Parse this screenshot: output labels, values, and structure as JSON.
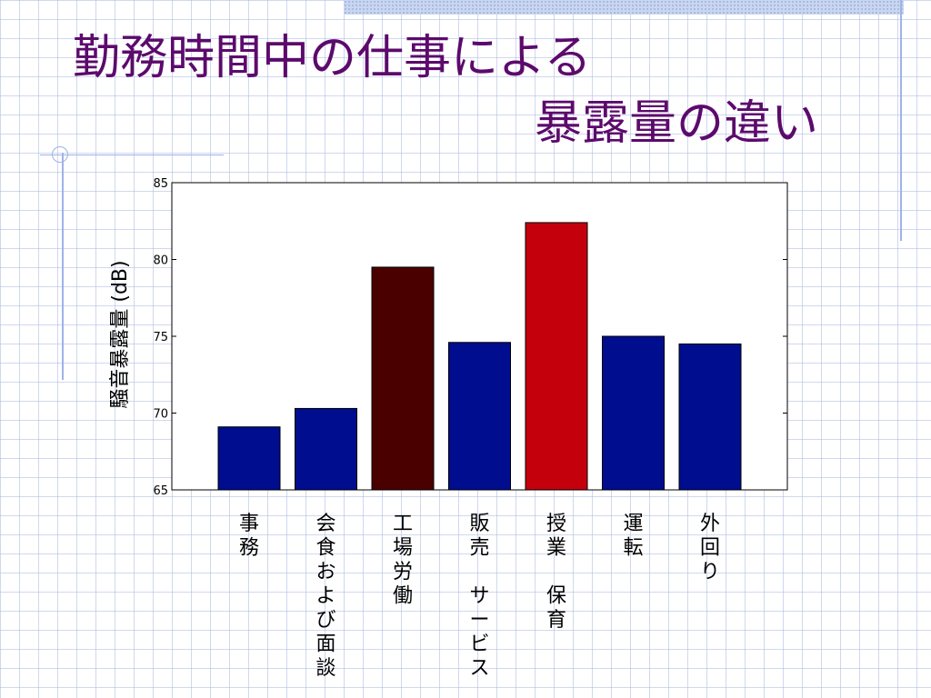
{
  "slide": {
    "title_line1": "勤務時間中の仕事による",
    "title_line2": "暴露量の違い"
  },
  "colors": {
    "title": "#5c0a6c",
    "bar_default": "#000d8f",
    "bar_factory": "#4b0000",
    "bar_teaching": "#c4000c",
    "grid_lines": "#aab9e1"
  },
  "chart_data": {
    "type": "bar",
    "ylabel": "騒音暴露量 (dB)",
    "ylim": [
      65,
      85
    ],
    "yticks": [
      65,
      70,
      75,
      80,
      85
    ],
    "categories": [
      "事務",
      "会食および面談",
      "工場労働",
      "販売　サービス",
      "授業　保育",
      "運転",
      "外回り"
    ],
    "values": [
      69.1,
      70.3,
      79.5,
      74.6,
      82.4,
      75.0,
      74.5
    ],
    "bar_colors": [
      "#000d8f",
      "#000d8f",
      "#4b0000",
      "#000d8f",
      "#c4000c",
      "#000d8f",
      "#000d8f"
    ],
    "grid": false,
    "legend": "none"
  }
}
